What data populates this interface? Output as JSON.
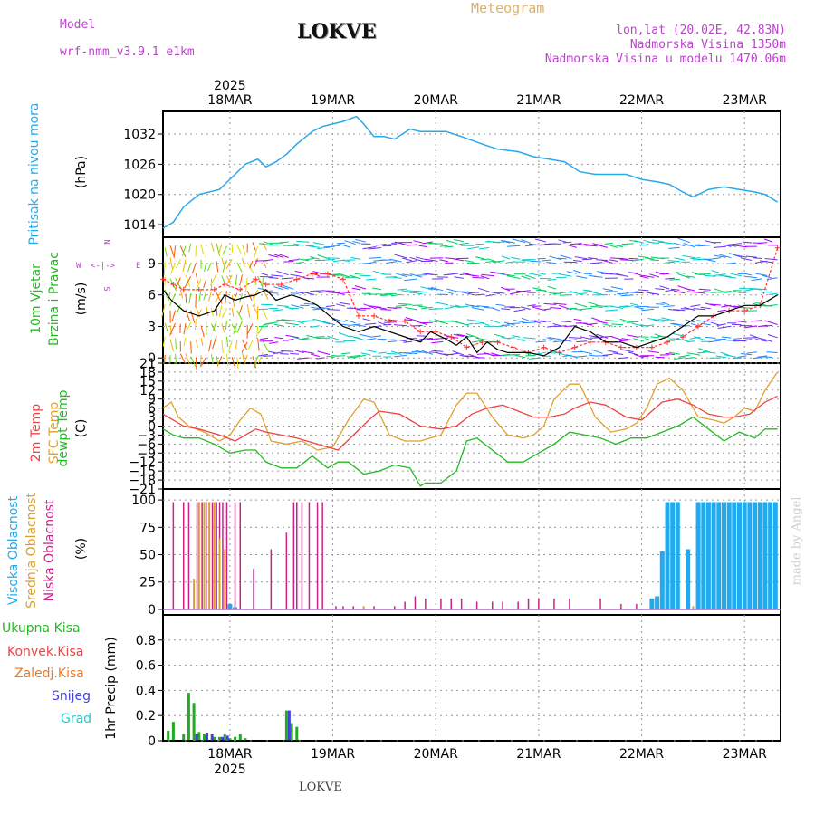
{
  "header": {
    "model_label": "Model",
    "model_name": "wrf-nmm_v3.9.1  e1km",
    "station": "LOKVE",
    "title": "Meteogram",
    "coords": "lon,lat (20.02E, 42.83N)",
    "elev": "Nadmorska Visina 1350m",
    "elev_model": "Nadmorska Visina u modelu 1470.06m"
  },
  "footer": {
    "station": "LOKVE",
    "credit": "made by Angel"
  },
  "colors": {
    "pressure": "#2aa8e8",
    "temp2m": "#ee4444",
    "sfc": "#e0a030",
    "dewpt": "#22bb22",
    "black": "#000000",
    "high": "#22aaee",
    "mid": "#d8a030",
    "low": "#cc2288",
    "grid": "#999999"
  },
  "chart_data": [
    {
      "type": "line",
      "name": "pressure",
      "ylabel_lines": [
        "Pritisak na nivou mora",
        "(hPa)"
      ],
      "ylim": [
        1011.5,
        1036.5
      ],
      "yticks": [
        1014,
        1020,
        1026,
        1032
      ],
      "xticks": [
        "18MAR",
        "19MAR",
        "20MAR",
        "21MAR",
        "22MAR",
        "23MAR"
      ],
      "xtick_days": [
        0.65,
        1.65,
        2.65,
        3.65,
        4.65,
        5.65
      ],
      "year": "2025",
      "grid": true,
      "x": [
        0,
        0.1,
        0.2,
        0.35,
        0.55,
        0.7,
        0.8,
        0.92,
        1.0,
        1.1,
        1.2,
        1.3,
        1.45,
        1.55,
        1.65,
        1.75,
        1.88,
        1.95,
        2.05,
        2.15,
        2.25,
        2.4,
        2.5,
        2.6,
        2.75,
        2.9,
        3.1,
        3.25,
        3.45,
        3.6,
        3.75,
        3.9,
        4.05,
        4.2,
        4.35,
        4.5,
        4.65,
        4.8,
        4.92,
        5.05,
        5.15,
        5.3,
        5.45,
        5.6,
        5.75,
        5.85,
        5.97
      ],
      "y": [
        1013.3,
        1014.5,
        1017.5,
        1020,
        1021,
        1024,
        1026,
        1027,
        1025.5,
        1026.5,
        1028,
        1030,
        1032.5,
        1033.5,
        1034,
        1034.5,
        1035.5,
        1034,
        1031.5,
        1031.5,
        1031,
        1033,
        1032.5,
        1032.5,
        1032.5,
        1031.5,
        1030,
        1029,
        1028.5,
        1027.5,
        1027,
        1026.5,
        1024.5,
        1024,
        1024,
        1024,
        1023,
        1022.5,
        1022,
        1020.5,
        1019.5,
        1021,
        1021.5,
        1021,
        1020.5,
        1020,
        1018.5
      ],
      "series_name": ""
    },
    {
      "type": "line",
      "name": "wind",
      "ylabel_lines": [
        "10m Vjetar",
        "Brzina i Pravac",
        "(m/s)"
      ],
      "direction_key": {
        "n": "N",
        "s": "S",
        "w": "W",
        "e": "E"
      },
      "ylim": [
        -0.5,
        11.5
      ],
      "yticks": [
        0,
        3,
        6,
        9
      ],
      "grid": true,
      "series": [
        {
          "name": "speed",
          "x": [
            0,
            0.08,
            0.2,
            0.35,
            0.5,
            0.6,
            0.7,
            0.8,
            0.9,
            1.0,
            1.1,
            1.25,
            1.4,
            1.5,
            1.62,
            1.75,
            1.9,
            2.05,
            2.2,
            2.35,
            2.5,
            2.6,
            2.75,
            2.85,
            2.95,
            3.05,
            3.15,
            3.25,
            3.35,
            3.45,
            3.55,
            3.7,
            3.85,
            4.0,
            4.15,
            4.3,
            4.45,
            4.6,
            4.75,
            4.9,
            5.05,
            5.2,
            5.35,
            5.5,
            5.65,
            5.8,
            5.97
          ],
          "y": [
            6.5,
            5.5,
            4.5,
            4,
            4.5,
            6,
            5.5,
            5.8,
            6,
            6.5,
            5.5,
            6,
            5.5,
            5,
            4,
            3,
            2.5,
            3,
            2.5,
            2,
            1.5,
            2.5,
            1.8,
            1.2,
            2,
            0.5,
            1.5,
            0.8,
            0.5,
            0.5,
            0.5,
            0.2,
            1,
            3,
            2.5,
            1.5,
            1.5,
            1,
            1.5,
            2,
            3,
            4,
            4,
            4.5,
            5,
            5,
            6
          ]
        },
        {
          "name": "gust",
          "x": [
            0,
            0.1,
            0.2,
            0.35,
            0.5,
            0.6,
            0.75,
            0.9,
            1.0,
            1.15,
            1.3,
            1.45,
            1.6,
            1.75,
            1.9,
            2.05,
            2.2,
            2.35,
            2.5,
            2.65,
            2.8,
            2.95,
            3.1,
            3.25,
            3.4,
            3.55,
            3.7,
            3.85,
            4.0,
            4.15,
            4.3,
            4.45,
            4.6,
            4.75,
            4.9,
            5.05,
            5.2,
            5.35,
            5.5,
            5.65,
            5.8,
            5.97
          ],
          "y": [
            7.5,
            7,
            6.5,
            6.5,
            6.5,
            7,
            6.5,
            7.5,
            7,
            7,
            7.5,
            8,
            8,
            7.5,
            4,
            4,
            3.5,
            3.5,
            2.5,
            2.5,
            2,
            1,
            1.5,
            1.5,
            1,
            0.5,
            1,
            0.5,
            1,
            1.5,
            1.5,
            1,
            1,
            1,
            1.5,
            2,
            3,
            4,
            4.5,
            4.5,
            5,
            10.5
          ]
        }
      ],
      "series_name": ""
    },
    {
      "type": "line",
      "name": "temperature",
      "ylabel_lines": [
        "2m Temp",
        "SFC Temp",
        "dewpt Temp",
        "(C)"
      ],
      "ylim": [
        -21,
        21
      ],
      "yticks": [
        -21,
        -18,
        -15,
        -12,
        -9,
        -6,
        -3,
        0,
        3,
        6,
        9,
        12,
        15,
        18,
        21
      ],
      "grid": true,
      "series": [
        {
          "name": "2m Temp",
          "x": [
            0,
            0.1,
            0.2,
            0.35,
            0.55,
            0.7,
            0.8,
            0.9,
            1.0,
            1.15,
            1.3,
            1.5,
            1.7,
            1.85,
            2.0,
            2.1,
            2.3,
            2.5,
            2.7,
            2.85,
            3.0,
            3.15,
            3.3,
            3.45,
            3.6,
            3.75,
            3.9,
            4.0,
            4.15,
            4.3,
            4.5,
            4.65,
            4.75,
            4.85,
            5.0,
            5.15,
            5.3,
            5.45,
            5.55,
            5.7,
            5.85,
            5.97
          ],
          "y": [
            4,
            2,
            0,
            -1,
            -3,
            -5,
            -3,
            -1,
            -2,
            -3,
            -4,
            -6,
            -8,
            -3,
            2,
            5,
            4,
            0,
            -1,
            0,
            4,
            6,
            7,
            5,
            3,
            3,
            4,
            6,
            8,
            7,
            3,
            2,
            5,
            8,
            9,
            7,
            4,
            3,
            3,
            4,
            8,
            10
          ]
        },
        {
          "name": "SFC Temp",
          "x": [
            0,
            0.08,
            0.15,
            0.25,
            0.4,
            0.55,
            0.65,
            0.75,
            0.85,
            0.95,
            1.05,
            1.2,
            1.35,
            1.5,
            1.65,
            1.8,
            1.95,
            2.05,
            2.2,
            2.35,
            2.5,
            2.6,
            2.7,
            2.85,
            2.95,
            3.05,
            3.2,
            3.35,
            3.5,
            3.6,
            3.7,
            3.8,
            3.95,
            4.05,
            4.2,
            4.35,
            4.5,
            4.6,
            4.7,
            4.8,
            4.92,
            5.05,
            5.2,
            5.35,
            5.45,
            5.55,
            5.65,
            5.75,
            5.85,
            5.97
          ],
          "y": [
            6,
            8,
            3,
            0,
            -2,
            -5,
            -3,
            2,
            6,
            4,
            -5,
            -6,
            -5,
            -8,
            -7,
            2,
            9,
            8,
            -3,
            -5,
            -5,
            -4,
            -3,
            7,
            11,
            11,
            3,
            -3,
            -4,
            -3,
            0,
            9,
            14,
            14,
            3,
            -2,
            -1,
            1,
            6,
            14,
            16,
            12,
            3,
            2,
            1,
            3,
            6,
            5,
            12,
            18
          ]
        },
        {
          "name": "dewpt Temp",
          "x": [
            0,
            0.1,
            0.2,
            0.35,
            0.5,
            0.65,
            0.8,
            0.9,
            1.0,
            1.15,
            1.3,
            1.45,
            1.6,
            1.7,
            1.8,
            1.95,
            2.1,
            2.25,
            2.4,
            2.5,
            2.55,
            2.7,
            2.85,
            2.95,
            3.05,
            3.2,
            3.35,
            3.5,
            3.65,
            3.8,
            3.95,
            4.1,
            4.25,
            4.4,
            4.55,
            4.7,
            4.85,
            5.0,
            5.15,
            5.3,
            5.45,
            5.6,
            5.75,
            5.85,
            5.97
          ],
          "y": [
            -1,
            -3,
            -4,
            -4,
            -6,
            -9,
            -8,
            -8,
            -12,
            -14,
            -14,
            -10,
            -14,
            -12,
            -12,
            -16,
            -15,
            -13,
            -14,
            -20,
            -19,
            -19,
            -15,
            -5,
            -4,
            -8,
            -12,
            -12,
            -9,
            -6,
            -2,
            -3,
            -4,
            -6,
            -4,
            -4,
            -2,
            0,
            3,
            -1,
            -5,
            -2,
            -4,
            -1,
            -1
          ]
        }
      ],
      "series_name": ""
    },
    {
      "type": "bar",
      "name": "clouds",
      "ylabel_lines": [
        "Visoka Oblacnost",
        "Srednja Oblacnost",
        "Niska Oblacnost",
        "(%)"
      ],
      "ylim": [
        -5,
        110
      ],
      "yticks": [
        0,
        25,
        50,
        75,
        100
      ],
      "grid": true,
      "series": [
        {
          "name": "Niska Oblacnost",
          "x": [
            0.1,
            0.2,
            0.25,
            0.33,
            0.38,
            0.42,
            0.45,
            0.48,
            0.52,
            0.55,
            0.58,
            0.62,
            0.7,
            0.75,
            0.88,
            1.05,
            1.2,
            1.27,
            1.3,
            1.35,
            1.42,
            1.5,
            1.55,
            1.68,
            1.75,
            1.85,
            2.05,
            2.25,
            2.35,
            2.45,
            2.55,
            2.7,
            2.8,
            2.9,
            3.05,
            3.2,
            3.3,
            3.45,
            3.55,
            3.65,
            3.8,
            3.95,
            4.25,
            4.45,
            4.6,
            4.85,
            4.95,
            5.25
          ],
          "y": [
            98,
            98,
            98,
            98,
            98,
            98,
            98,
            98,
            98,
            98,
            98,
            98,
            98,
            98,
            37,
            55,
            70,
            98,
            98,
            98,
            98,
            98,
            98,
            3,
            3,
            3,
            3,
            3,
            7,
            12,
            10,
            10,
            10,
            10,
            7,
            7,
            7,
            7,
            10,
            10,
            10,
            10,
            10,
            5,
            5,
            5,
            5,
            2
          ]
        },
        {
          "name": "Srednja Oblacnost",
          "x": [
            0.3,
            0.35,
            0.4,
            0.45,
            0.5,
            0.55,
            0.6,
            0.65,
            1.95,
            4.95,
            5.15,
            5.3,
            5.55,
            5.65,
            5.7,
            5.75,
            5.8,
            5.85,
            5.9,
            5.95
          ],
          "y": [
            28,
            98,
            98,
            98,
            98,
            65,
            55,
            5,
            3,
            3,
            3,
            58,
            98,
            98,
            98,
            98,
            98,
            98,
            98,
            98
          ]
        },
        {
          "name": "Visoka Oblacnost",
          "x": [
            0.65,
            0.7,
            4.75,
            4.8,
            4.85,
            4.9,
            4.95,
            5.0,
            5.1,
            5.2,
            5.25,
            5.3,
            5.35,
            5.4,
            5.45,
            5.5,
            5.55,
            5.6,
            5.65,
            5.7,
            5.75,
            5.8,
            5.85,
            5.9,
            5.95
          ],
          "y": [
            5,
            2,
            10,
            12,
            53,
            98,
            98,
            98,
            55,
            98,
            98,
            98,
            98,
            98,
            98,
            98,
            98,
            98,
            98,
            98,
            98,
            98,
            98,
            98,
            98
          ]
        }
      ],
      "series_name": ""
    },
    {
      "type": "bar",
      "name": "precip",
      "ylabel_lines": [
        "1hr Precip (mm)"
      ],
      "legend": [
        "Ukupna Kisa",
        "Konvek.Kisa",
        "Zaledj.Kisa",
        "Snijeg",
        "Grad"
      ],
      "ylim": [
        0,
        1.0
      ],
      "yticks": [
        0,
        0.2,
        0.4,
        0.6,
        0.8
      ],
      "ytick_labels": [
        "0",
        "0.2",
        "0.4",
        "0.6",
        "0.8"
      ],
      "grid": true,
      "series": [
        {
          "name": "Ukupna Kisa",
          "x": [
            0.05,
            0.1,
            0.2,
            0.25,
            0.3,
            0.35,
            0.4,
            0.5,
            0.55,
            0.6,
            0.65,
            0.7,
            0.75,
            0.8,
            1.2,
            1.25,
            1.3
          ],
          "y": [
            0.08,
            0.15,
            0.05,
            0.38,
            0.3,
            0.07,
            0.05,
            0.03,
            0.03,
            0.05,
            0.02,
            0.03,
            0.05,
            0.02,
            0.24,
            0.14,
            0.11
          ]
        },
        {
          "name": "Snijeg",
          "x": [
            0.3,
            0.4,
            0.45,
            0.55,
            0.6,
            1.2
          ],
          "y": [
            0.05,
            0.06,
            0.05,
            0.03,
            0.04,
            0.24
          ]
        }
      ],
      "series_name": ""
    }
  ]
}
